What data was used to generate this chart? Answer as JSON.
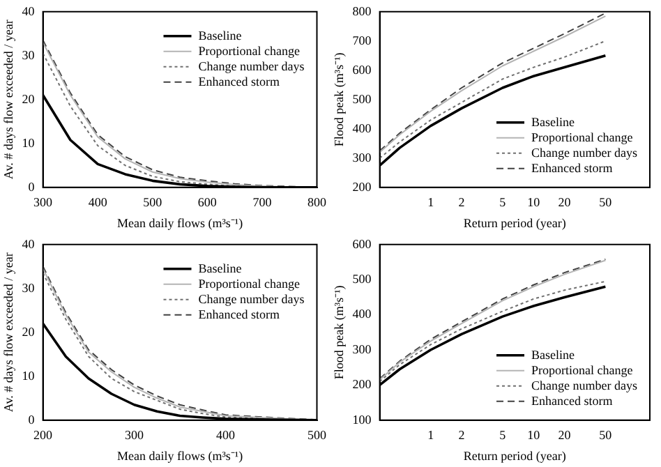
{
  "chart_data": [
    {
      "type": "line",
      "xlabel": "Mean daily flows (m³s⁻¹)",
      "ylabel": "Av. # days flow exceeded / year",
      "xlim": [
        300,
        800
      ],
      "xticks": [
        300,
        400,
        500,
        600,
        700,
        800
      ],
      "ylim": [
        0,
        40
      ],
      "yticks": [
        0,
        10,
        20,
        30,
        40
      ],
      "grid": false,
      "legend": "top right",
      "marker": "none",
      "x": [
        300,
        350,
        400,
        450,
        500,
        550,
        600,
        650,
        700,
        750,
        800
      ],
      "series": [
        {
          "name": "Baseline",
          "color": "#000000",
          "line_style": "solid",
          "values": [
            21,
            10.8,
            5.3,
            3,
            1.5,
            0.7,
            0.3,
            0.1,
            0,
            0,
            0
          ]
        },
        {
          "name": "Proportional change",
          "color": "#b4b4b4",
          "line_style": "solid",
          "values": [
            33,
            21,
            11.5,
            6.5,
            3.5,
            2,
            1.2,
            0.6,
            0.3,
            0.1,
            0
          ]
        },
        {
          "name": "Change number days",
          "color": "#707070",
          "line_style": "dotted",
          "values": [
            30.5,
            18.5,
            9.5,
            5,
            2.5,
            1.3,
            0.7,
            0.3,
            0.1,
            0,
            0
          ]
        },
        {
          "name": "Enhanced storm",
          "color": "#404040",
          "line_style": "dashed",
          "values": [
            33.5,
            21.5,
            12,
            7,
            4,
            2.3,
            1.5,
            0.8,
            0.4,
            0.2,
            0
          ]
        }
      ]
    },
    {
      "type": "line",
      "xlabel": "Return period (year)",
      "ylabel": "Flood peak (m³s⁻¹)",
      "log": "x",
      "xlim": [
        0.32,
        135
      ],
      "xticks": [
        1,
        2,
        5,
        10,
        20,
        50
      ],
      "ylim": [
        200,
        800
      ],
      "yticks": [
        200,
        300,
        400,
        500,
        600,
        700,
        800
      ],
      "grid": false,
      "legend": "bottom right",
      "marker": "none",
      "x": [
        0.32,
        0.5,
        1,
        2,
        5,
        10,
        20,
        50
      ],
      "series": [
        {
          "name": "Baseline",
          "color": "#000000",
          "line_style": "solid",
          "values": [
            275,
            335,
            410,
            470,
            540,
            580,
            610,
            650
          ]
        },
        {
          "name": "Proportional change",
          "color": "#b4b4b4",
          "line_style": "solid",
          "values": [
            320,
            380,
            460,
            530,
            615,
            665,
            715,
            785
          ]
        },
        {
          "name": "Change number days",
          "color": "#707070",
          "line_style": "dotted",
          "values": [
            300,
            355,
            430,
            490,
            570,
            610,
            645,
            700
          ]
        },
        {
          "name": "Enhanced storm",
          "color": "#404040",
          "line_style": "dashed",
          "values": [
            325,
            385,
            465,
            540,
            625,
            675,
            725,
            795
          ]
        }
      ]
    },
    {
      "type": "line",
      "xlabel": "Mean daily flows (m³s⁻¹)",
      "ylabel": "Av. # days flow exceeded / year",
      "xlim": [
        200,
        500
      ],
      "xticks": [
        200,
        300,
        400,
        500
      ],
      "ylim": [
        0,
        40
      ],
      "yticks": [
        0,
        10,
        20,
        30,
        40
      ],
      "grid": false,
      "legend": "top right",
      "marker": "none",
      "x": [
        200,
        225,
        250,
        275,
        300,
        325,
        350,
        375,
        400,
        450,
        500
      ],
      "series": [
        {
          "name": "Baseline",
          "color": "#000000",
          "line_style": "solid",
          "values": [
            22,
            14.5,
            9.5,
            6,
            3.5,
            2,
            1,
            0.6,
            0.3,
            0.1,
            0
          ]
        },
        {
          "name": "Proportional change",
          "color": "#b4b4b4",
          "line_style": "solid",
          "values": [
            34.5,
            24,
            15.5,
            11,
            7.5,
            5,
            3,
            2,
            1,
            0.5,
            0
          ]
        },
        {
          "name": "Change number days",
          "color": "#707070",
          "line_style": "dotted",
          "values": [
            33.5,
            23,
            14.5,
            9.5,
            6.5,
            4.5,
            2.5,
            1.5,
            0.7,
            0.3,
            0
          ]
        },
        {
          "name": "Enhanced storm",
          "color": "#404040",
          "line_style": "dashed",
          "values": [
            35,
            24.5,
            16,
            11.5,
            8,
            5.5,
            3.5,
            2.3,
            1.2,
            0.6,
            0.1
          ]
        }
      ]
    },
    {
      "type": "line",
      "xlabel": "Return period (year)",
      "ylabel": "Flood peak (m³s⁻¹)",
      "log": "x",
      "xlim": [
        0.32,
        135
      ],
      "xticks": [
        1,
        2,
        5,
        10,
        20,
        50
      ],
      "ylim": [
        100,
        600
      ],
      "yticks": [
        100,
        200,
        300,
        400,
        500,
        600
      ],
      "grid": false,
      "legend": "bottom right",
      "marker": "none",
      "x": [
        0.32,
        0.5,
        1,
        2,
        5,
        10,
        20,
        50
      ],
      "series": [
        {
          "name": "Baseline",
          "color": "#000000",
          "line_style": "solid",
          "values": [
            200,
            245,
            300,
            345,
            395,
            425,
            450,
            480
          ]
        },
        {
          "name": "Proportional change",
          "color": "#b4b4b4",
          "line_style": "solid",
          "values": [
            215,
            265,
            325,
            375,
            440,
            480,
            515,
            555
          ]
        },
        {
          "name": "Change number days",
          "color": "#707070",
          "line_style": "dotted",
          "values": [
            210,
            258,
            315,
            360,
            410,
            445,
            470,
            495
          ]
        },
        {
          "name": "Enhanced storm",
          "color": "#404040",
          "line_style": "dashed",
          "values": [
            218,
            268,
            330,
            380,
            445,
            485,
            520,
            558
          ]
        }
      ]
    }
  ]
}
